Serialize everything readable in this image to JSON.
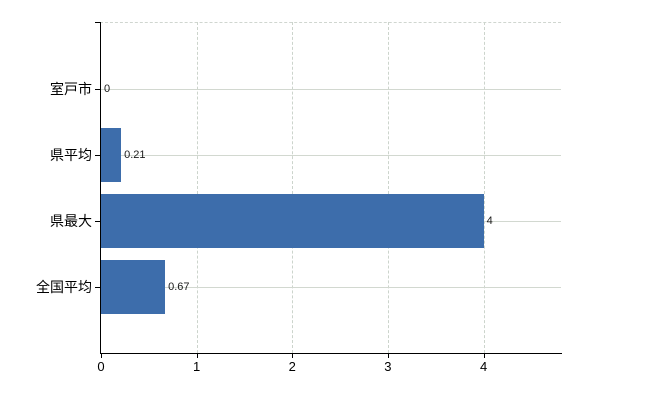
{
  "chart_data": {
    "type": "bar",
    "orientation": "horizontal",
    "categories": [
      "室戸市",
      "県平均",
      "県最大",
      "全国平均"
    ],
    "values": [
      0,
      0.21,
      4,
      0.67
    ],
    "value_labels": [
      "0",
      "0.21",
      "4",
      "0.67"
    ],
    "x_ticks": [
      0,
      1,
      2,
      3,
      4
    ],
    "x_tick_labels": [
      "0",
      "1",
      "2",
      "3",
      "4"
    ],
    "xlim": [
      0,
      4.82
    ],
    "grid": true,
    "legend": false,
    "bar_color": "#3d6dab",
    "grid_color_horizontal": "#d2d8d0",
    "grid_color_vertical": "#ccd4cc",
    "axis_color": "#000000",
    "background_color": "#ffffff"
  }
}
